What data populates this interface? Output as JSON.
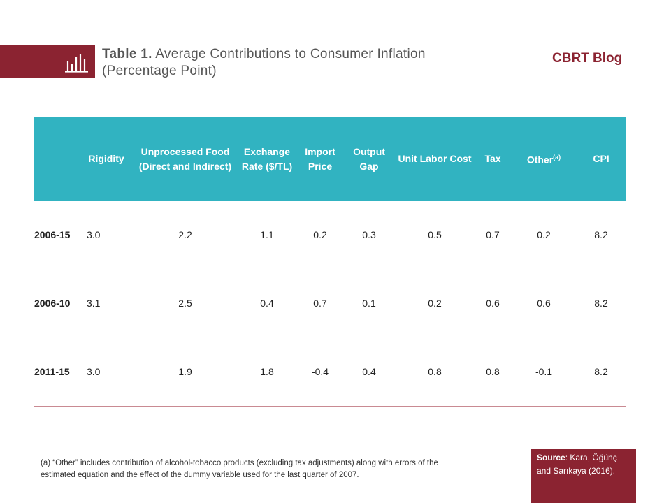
{
  "header": {
    "title_lead": "Table 1.",
    "title_rest": " Average Contributions to Consumer Inflation (Percentage Point)",
    "brand": "CBRT Blog",
    "icon": "bar-chart-icon",
    "accent_color": "#8b2331"
  },
  "table": {
    "header_color": "#31b3c1",
    "columns": [
      "",
      "Rigidity",
      "Unprocessed Food (Direct and Indirect)",
      "Exchange Rate ($/TL)",
      "Import Price",
      "Output Gap",
      "Unit Labor Cost",
      "Tax",
      "Other",
      "CPI"
    ],
    "other_superscript": "(a)",
    "rows": [
      {
        "period": "2006-15",
        "values": [
          "3.0",
          "2.2",
          "1.1",
          "0.2",
          "0.3",
          "0.5",
          "0.7",
          "0.2",
          "8.2"
        ]
      },
      {
        "period": "2006-10",
        "values": [
          "3.1",
          "2.5",
          "0.4",
          "0.7",
          "0.1",
          "0.2",
          "0.6",
          "0.6",
          "8.2"
        ]
      },
      {
        "period": "2011-15",
        "values": [
          "3.0",
          "1.9",
          "1.8",
          "-0.4",
          "0.4",
          "0.8",
          "0.8",
          "-0.1",
          "8.2"
        ]
      }
    ]
  },
  "footnote": "(a) “Other” includes contribution of alcohol-tobacco products (excluding tax adjustments) along with errors of the estimated equation and the effect of the dummy variable used for the last quarter of 2007.",
  "source": {
    "label": "Source",
    "text": ": Kara, Öğünç and Sarıkaya (2016)."
  }
}
